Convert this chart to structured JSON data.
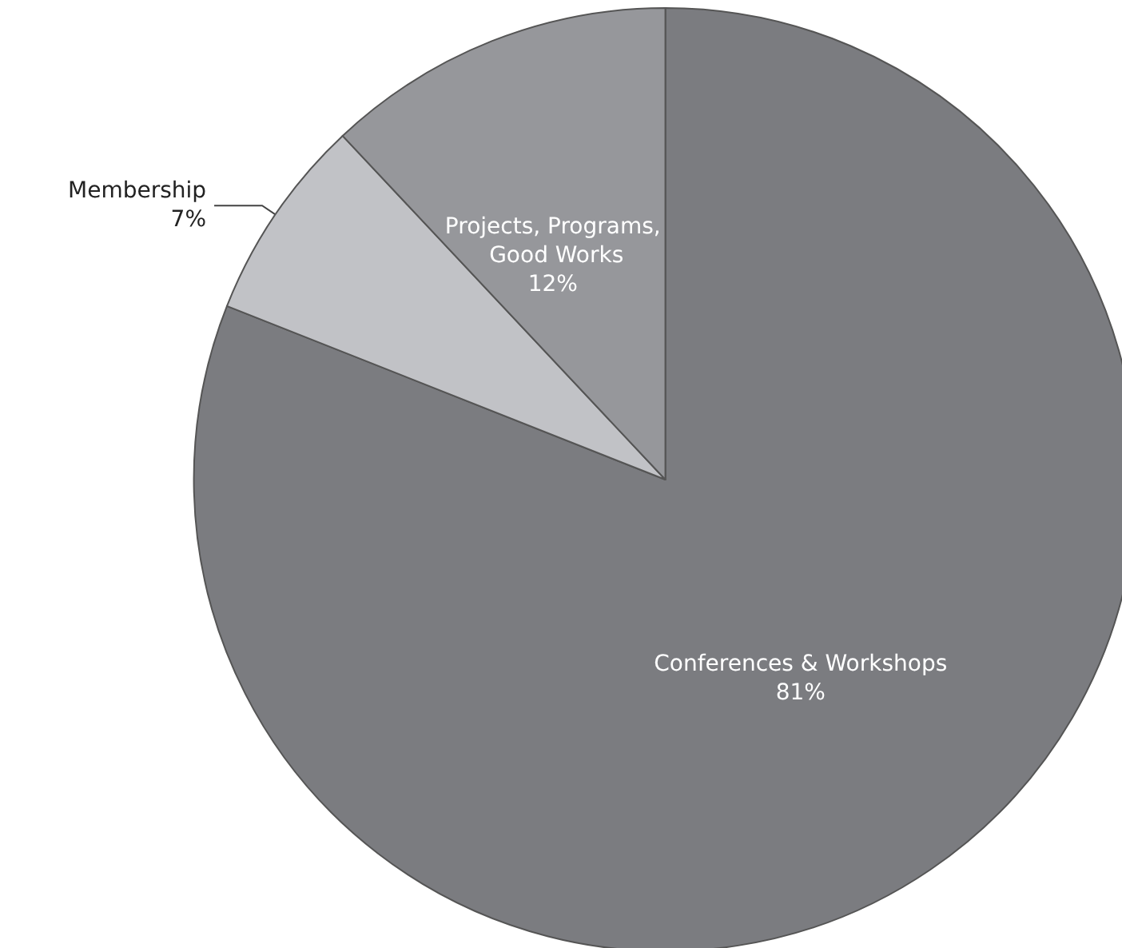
{
  "chart_data": {
    "type": "pie",
    "categories": [
      "Conferences & Workshops",
      "Membership",
      "Projects, Programs, Good Works"
    ],
    "values": [
      81,
      7,
      12
    ],
    "value_labels": [
      "81%",
      "7%",
      "12%"
    ],
    "colors": [
      "#7b7c80",
      "#c1c2c6",
      "#96979b"
    ]
  }
}
